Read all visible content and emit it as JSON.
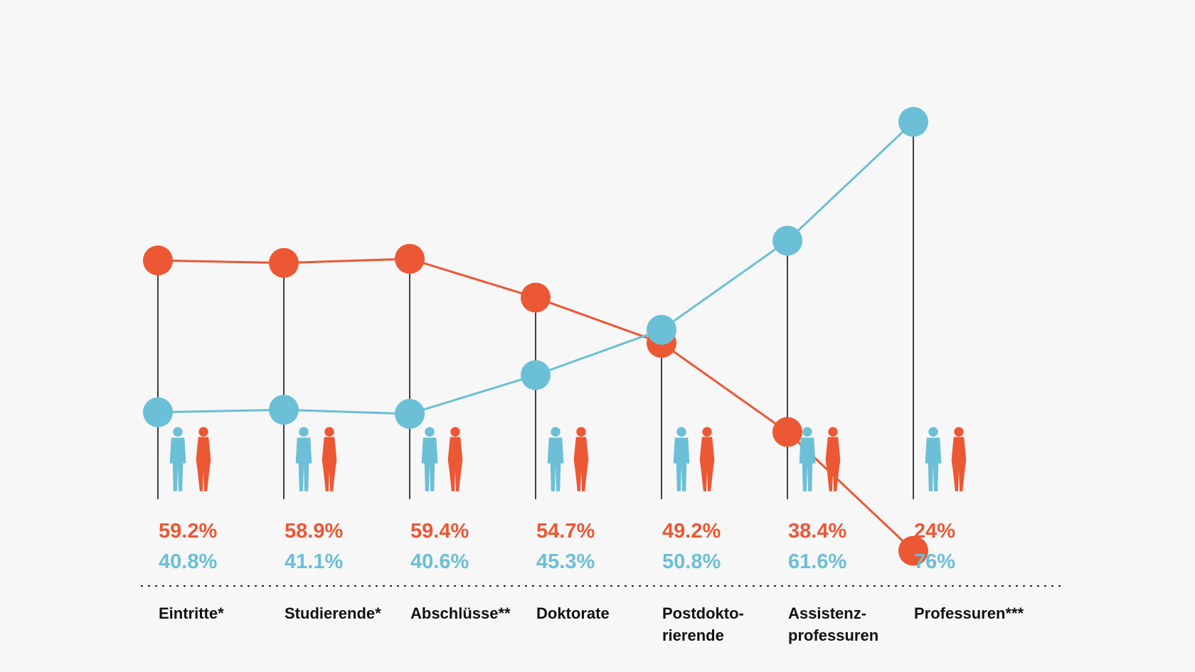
{
  "colors": {
    "women": "#ec5734",
    "men": "#6bbfd6",
    "stem": "#111111",
    "background": "#f7f7f7"
  },
  "chart_data": {
    "type": "line",
    "categories": [
      [
        "Eintritte*"
      ],
      [
        "Studierende*"
      ],
      [
        "Abschlüsse**"
      ],
      [
        "Doktorate"
      ],
      [
        "Postdokto-",
        "rierende"
      ],
      [
        "Assistenz-",
        "professuren"
      ],
      [
        "Professuren***"
      ]
    ],
    "series": [
      {
        "key": "women",
        "values": [
          59.2,
          58.9,
          59.4,
          54.7,
          49.2,
          38.4,
          24
        ]
      },
      {
        "key": "men",
        "values": [
          40.8,
          41.1,
          40.6,
          45.3,
          50.8,
          61.6,
          76
        ]
      }
    ],
    "value_labels": {
      "women": [
        "59.2%",
        "58.9%",
        "59.4%",
        "54.7%",
        "49.2%",
        "38.4%",
        "24%"
      ],
      "men": [
        "40.8%",
        "41.1%",
        "40.6%",
        "45.3%",
        "50.8%",
        "61.6%",
        "76%"
      ]
    },
    "icons": [
      "walking-man-and-woman-icon",
      "students-with-bags-icon",
      "graduates-celebrating-icon",
      "doctoral-graduates-in-gowns-icon",
      "standing-man-and-woman-icon",
      "presenting-man-and-woman-icon",
      "professors-man-and-woman-icon"
    ],
    "grid": false,
    "legend": "none"
  }
}
